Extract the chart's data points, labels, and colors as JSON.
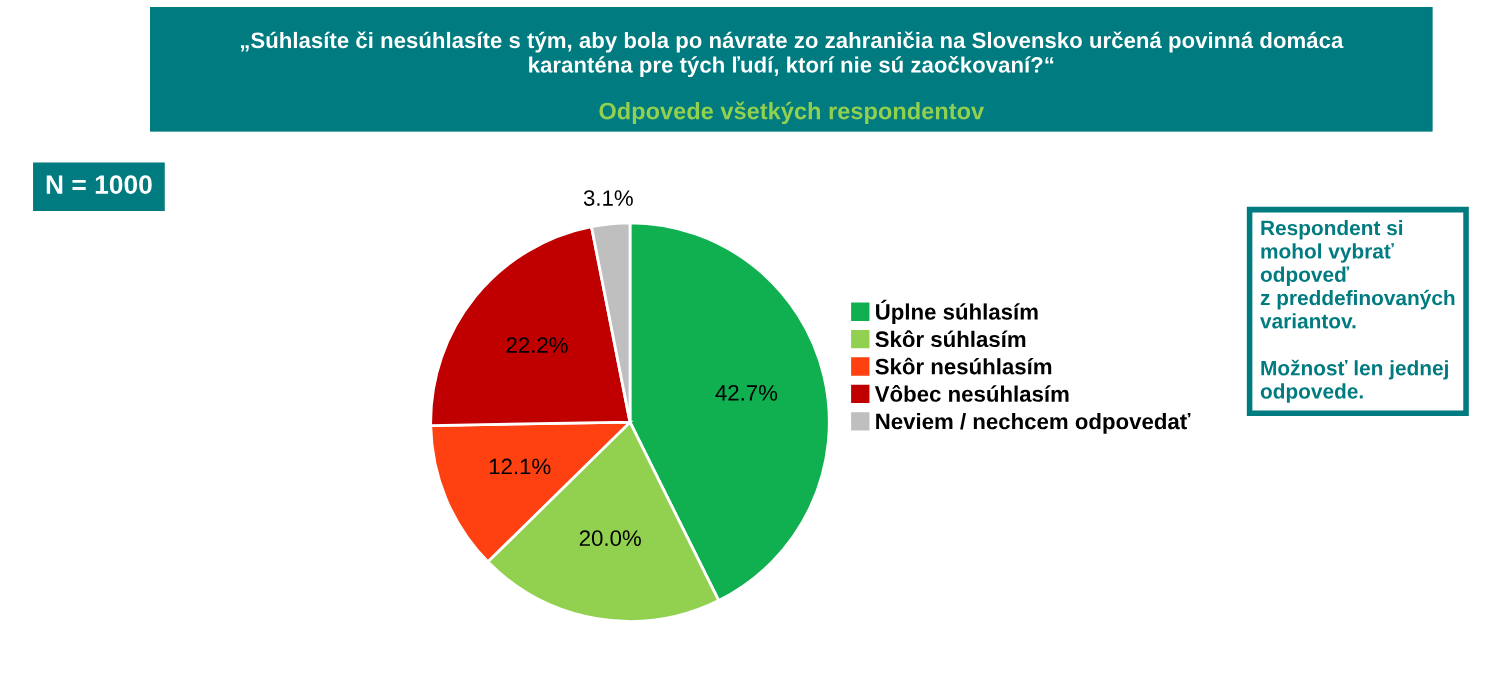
{
  "chart_data": {
    "type": "pie",
    "title": "„Súhlasíte či nesúhlasíte s tým, aby bola po návrate zo zahraničia na Slovensko určená povinná domáca\nkaranténa pre tých ľudí, ktorí nie sú zaočkovaní?“",
    "subtitle": "Odpovede všetkých respondentov",
    "categories": [
      "Úplne súhlasím",
      "Skôr súhlasím",
      "Skôr nesúhlasím",
      "Vôbec nesúhlasím",
      "Neviem / nechcem odpovedať"
    ],
    "values": [
      42.7,
      20.0,
      12.1,
      22.2,
      3.1
    ],
    "colors": [
      "#10b050",
      "#92d050",
      "#ff4011",
      "#c00000",
      "#bfbfbf"
    ],
    "value_labels": [
      "42.7%",
      "20.0%",
      "12.1%",
      "22.2%",
      "3.1%"
    ],
    "legend": "right",
    "annotations": [
      "N = 1000",
      "Respondent si\nmohol vybrať\nodpoveď\nz preddefinovaných\nvariantov.\n\nMožnosť len jednej\nodpovede."
    ]
  }
}
